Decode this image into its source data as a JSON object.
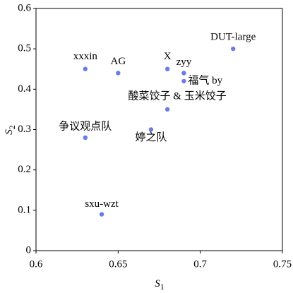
{
  "chart_data": {
    "type": "scatter",
    "xlabel": {
      "main": "S",
      "sub": "1"
    },
    "ylabel": {
      "main": "S",
      "sub": "2"
    },
    "color": "#6b7be6",
    "xlim": [
      0.6,
      0.75
    ],
    "xticks": [
      0.6,
      0.65,
      0.7,
      0.75
    ],
    "ylim": [
      0,
      0.6
    ],
    "yticks": [
      0,
      0.1,
      0.2,
      0.3,
      0.4,
      0.5,
      0.6
    ],
    "labels": [
      "xxxin",
      "AG",
      "X",
      "zyy",
      "DUT-large",
      "福气 by",
      "酸菜饺子 & 玉米饺子",
      "争议观点队",
      "婷之队",
      "sxu-wzt"
    ],
    "x": [
      0.63,
      0.65,
      0.68,
      0.69,
      0.72,
      0.69,
      0.68,
      0.63,
      0.67,
      0.64
    ],
    "values": [
      0.45,
      0.44,
      0.45,
      0.44,
      0.5,
      0.42,
      0.35,
      0.28,
      0.3,
      0.09
    ]
  }
}
